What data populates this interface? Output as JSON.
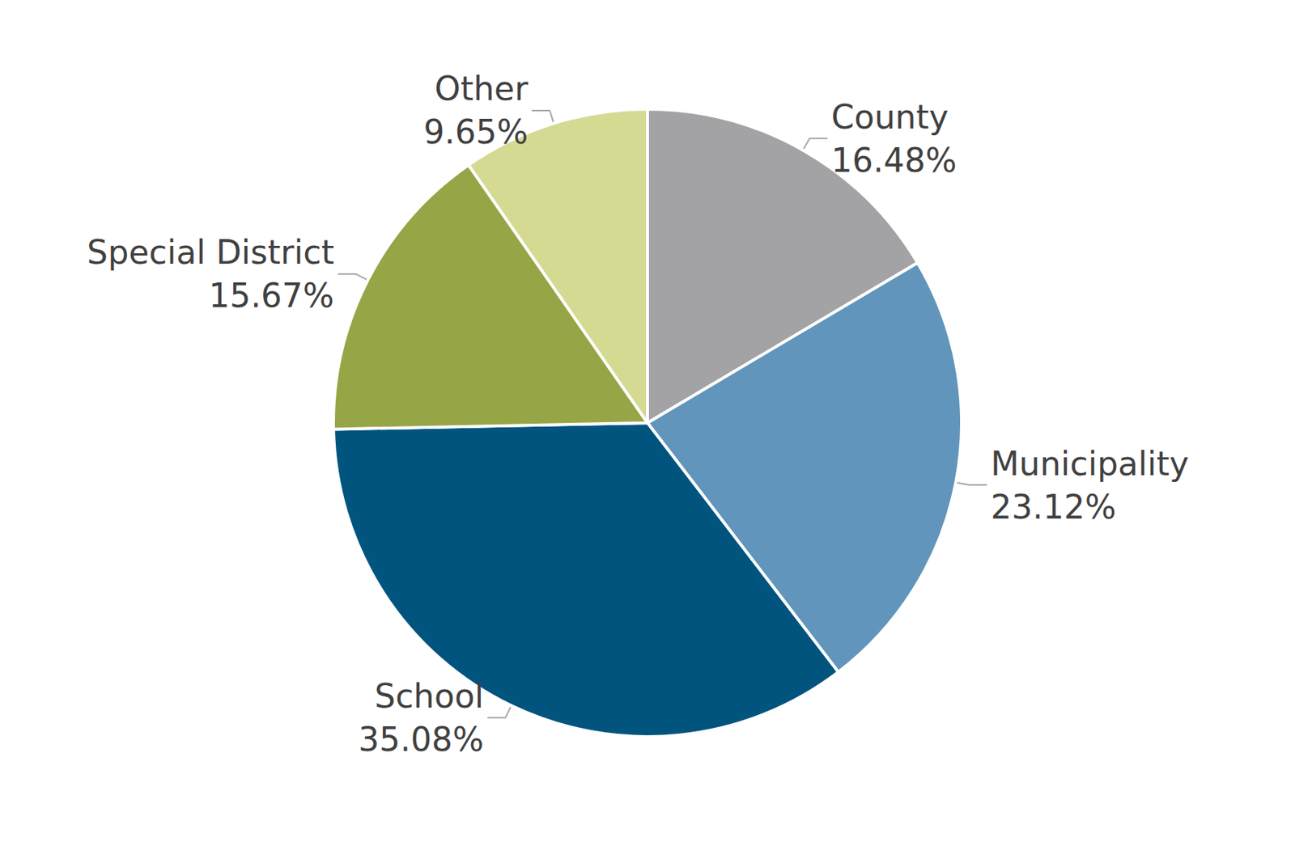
{
  "chart_data": {
    "type": "pie",
    "categories": [
      "County",
      "Municipality",
      "School",
      "Special District",
      "Other"
    ],
    "values": [
      16.48,
      23.12,
      35.08,
      15.67,
      9.65
    ],
    "value_labels": [
      "16.48%",
      "23.12%",
      "35.08%",
      "15.67%",
      "9.65%"
    ],
    "colors": [
      "#a3a3a5",
      "#6195bb",
      "#00547e",
      "#96a646",
      "#d4da91"
    ],
    "data_labels": true
  }
}
